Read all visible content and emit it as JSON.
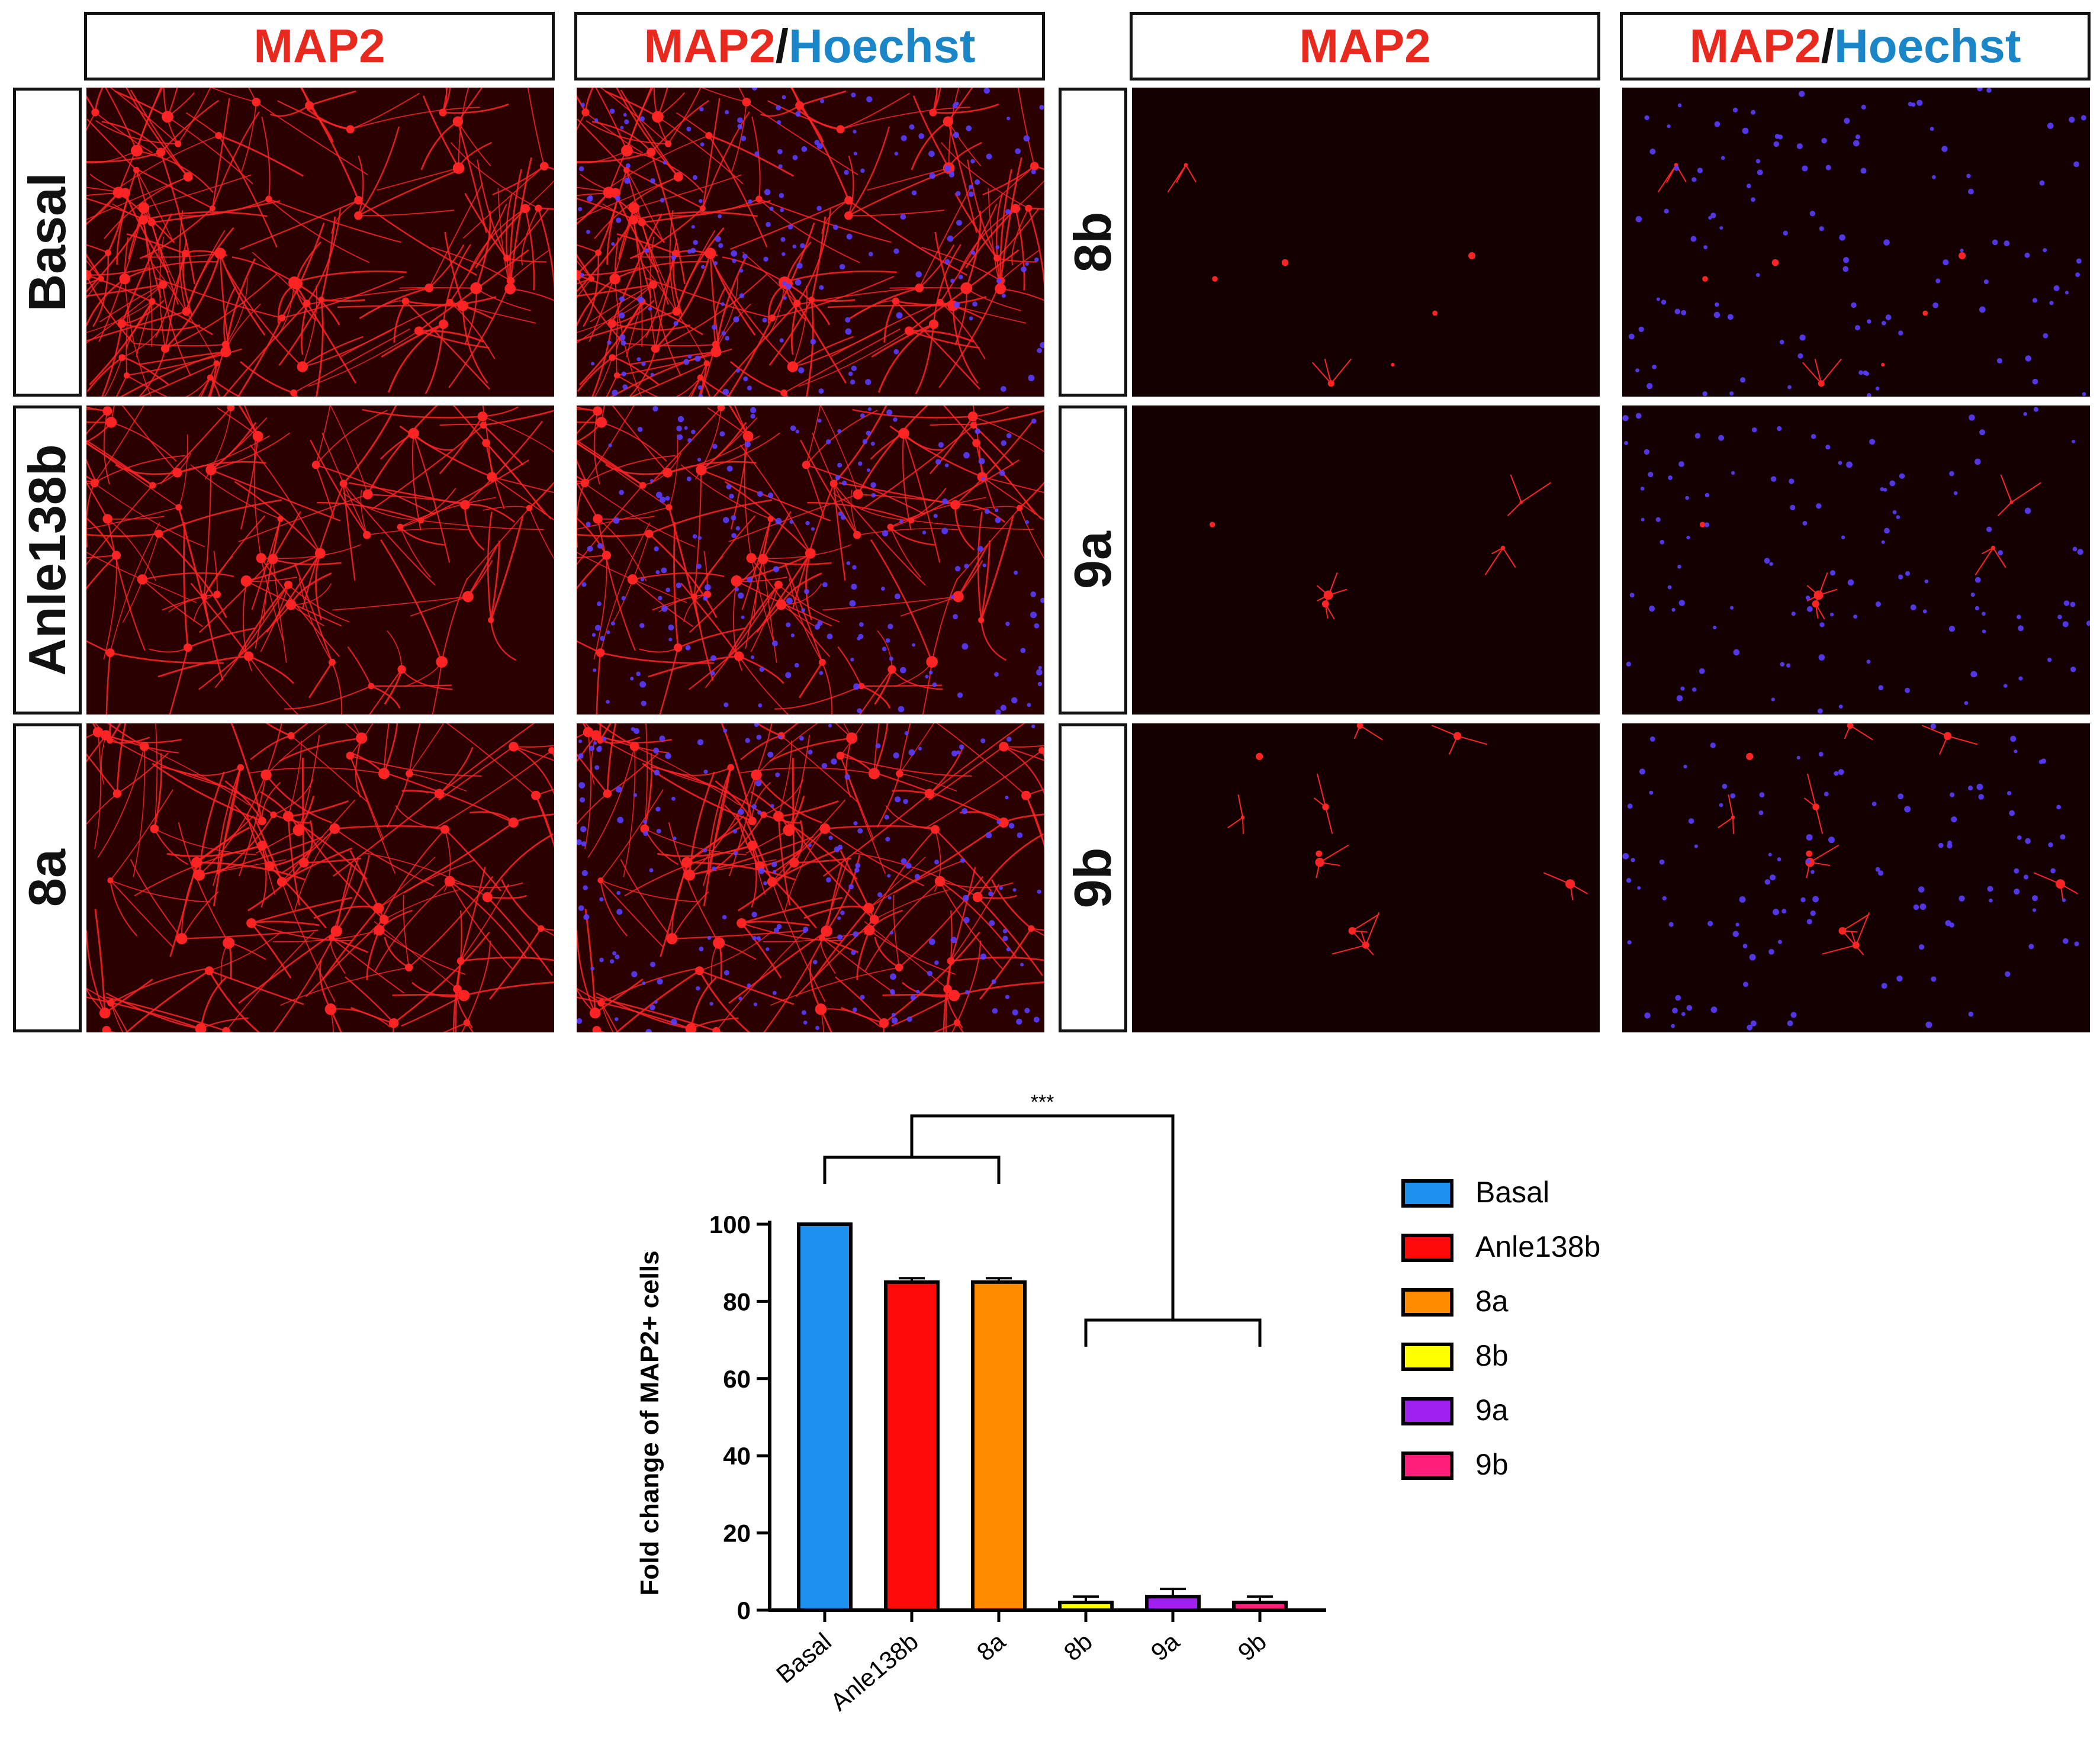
{
  "headers": {
    "map2": "MAP2",
    "slash": "/",
    "hoechst": "Hoechst"
  },
  "rows_left": [
    "Basal",
    "Anle138b",
    "8a"
  ],
  "rows_right": [
    "8b",
    "9a",
    "9b"
  ],
  "colors": {
    "map2_label": "#e8291e",
    "hoechst_label": "#1a86c8",
    "neuron": "#ff2424",
    "nuclei": "#5a3cff",
    "background": "#1a0000"
  },
  "chart_data": {
    "type": "bar",
    "categories": [
      "Basal",
      "Anle138b",
      "8a",
      "8b",
      "9a",
      "9b"
    ],
    "values": [
      100,
      85,
      85,
      2,
      3.5,
      2
    ],
    "errors": [
      0,
      1,
      1,
      1.5,
      2,
      1.5
    ],
    "colors": [
      "#1e90f0",
      "#ff0a0a",
      "#ff8c00",
      "#ffff00",
      "#a020f0",
      "#ff1f7a"
    ],
    "ylabel": "Fold change of MAP2+ cells",
    "yticks": [
      0,
      20,
      40,
      60,
      80,
      100
    ],
    "ylim": [
      0,
      100
    ],
    "significance": "***",
    "legend": [
      "Basal",
      "Anle138b",
      "8a",
      "8b",
      "9a",
      "9b"
    ],
    "legend_position": "right"
  }
}
